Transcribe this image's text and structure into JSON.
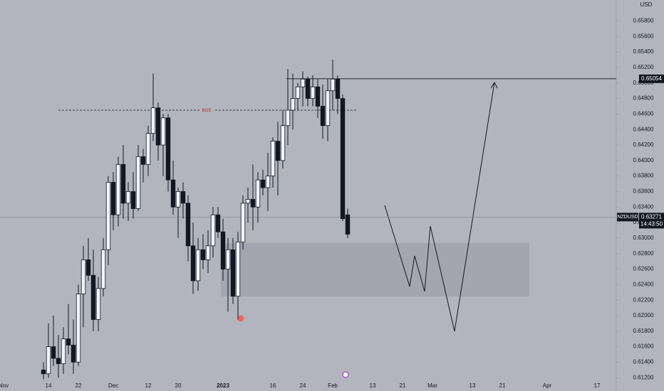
{
  "chart_data": {
    "type": "candlestick",
    "symbol": "NZDUSD",
    "currency": "USD",
    "annotation": "BOS",
    "countdown": "14:43:50",
    "last_price": 0.63271,
    "level_price": 0.65054,
    "up_color": "#f0f3fa",
    "down_color": "#131722",
    "ylim": [
      0.6112,
      0.6607
    ],
    "yticks": [
      {
        "value": 0.612,
        "label": "0.61200"
      },
      {
        "value": 0.614,
        "label": "0.61400"
      },
      {
        "value": 0.616,
        "label": "0.61600"
      },
      {
        "value": 0.618,
        "label": "0.61800"
      },
      {
        "value": 0.62,
        "label": "0.62000"
      },
      {
        "value": 0.622,
        "label": "0.62200"
      },
      {
        "value": 0.624,
        "label": "0.62400"
      },
      {
        "value": 0.626,
        "label": "0.62600"
      },
      {
        "value": 0.628,
        "label": "0.62800"
      },
      {
        "value": 0.63,
        "label": "0.63000"
      },
      {
        "value": 0.632,
        "label": "0.63200"
      },
      {
        "value": 0.634,
        "label": "0.63400"
      },
      {
        "value": 0.636,
        "label": "0.63600"
      },
      {
        "value": 0.638,
        "label": "0.63800"
      },
      {
        "value": 0.64,
        "label": "0.64000"
      },
      {
        "value": 0.642,
        "label": "0.64200"
      },
      {
        "value": 0.644,
        "label": "0.64400"
      },
      {
        "value": 0.646,
        "label": "0.64600"
      },
      {
        "value": 0.648,
        "label": "0.64800"
      },
      {
        "value": 0.65,
        "label": "0.65000"
      },
      {
        "value": 0.652,
        "label": "0.65200"
      },
      {
        "value": 0.654,
        "label": "0.65400"
      },
      {
        "value": 0.656,
        "label": "0.65600"
      },
      {
        "value": 0.658,
        "label": "0.65800"
      }
    ],
    "categories": [
      "Nov",
      null,
      null,
      null,
      null,
      null,
      null,
      null,
      null,
      "14",
      null,
      null,
      null,
      null,
      null,
      "22",
      null,
      null,
      null,
      null,
      null,
      null,
      "Dec",
      null,
      null,
      null,
      null,
      null,
      null,
      "12",
      null,
      null,
      null,
      null,
      null,
      "20",
      null,
      null,
      null,
      null,
      null,
      null,
      null,
      null,
      "2023",
      null,
      null,
      null,
      null,
      null,
      null,
      null,
      null,
      null,
      "16",
      null,
      null,
      null,
      null,
      null,
      "24",
      null,
      null,
      null,
      null,
      null,
      "Feb",
      null,
      null,
      null,
      null,
      null,
      null,
      null,
      "13",
      null,
      null,
      null,
      null,
      null,
      "21",
      null,
      null,
      null,
      null,
      null,
      "Mar",
      null,
      null,
      null,
      null,
      null,
      null,
      null,
      "13",
      null,
      null,
      null,
      null,
      null,
      "21",
      null,
      null,
      null,
      null,
      null,
      null,
      null,
      null,
      "Apr",
      null,
      null,
      null,
      null,
      null,
      null,
      null,
      null,
      null,
      "17",
      null,
      null,
      null
    ],
    "open": [
      null,
      null,
      null,
      null,
      null,
      null,
      null,
      null,
      0.613,
      0.6125,
      0.616,
      0.6145,
      0.6138,
      0.617,
      0.6162,
      0.614,
      0.6228,
      0.6272,
      0.6252,
      0.6195,
      0.6235,
      0.6285,
      0.6372,
      0.633,
      0.6395,
      0.6345,
      0.636,
      0.6338,
      0.6405,
      0.6395,
      0.6435,
      0.6468,
      0.642,
      0.6455,
      0.6375,
      0.634,
      0.636,
      0.6345,
      0.629,
      0.6245,
      0.6285,
      0.6272,
      0.629,
      0.633,
      0.6308,
      0.626,
      0.6285,
      0.6225,
      0.6295,
      0.6345,
      0.635,
      0.634,
      0.6375,
      0.6365,
      0.638,
      0.6425,
      0.64,
      0.6445,
      0.6465,
      0.648,
      0.6495,
      0.6505,
      0.648,
      0.6495,
      0.647,
      0.6445,
      0.649,
      0.6505,
      0.648,
      0.633,
      null,
      null,
      null,
      null,
      null,
      null,
      null,
      null,
      null,
      null,
      null,
      null,
      null,
      null,
      null,
      null,
      null,
      null,
      null,
      null,
      null,
      null,
      null,
      null,
      null,
      null,
      null,
      null,
      null,
      null,
      null,
      null,
      null,
      null,
      null,
      null,
      null,
      null,
      null,
      null,
      null,
      null,
      null,
      null,
      null,
      null,
      null,
      null,
      null,
      null,
      null,
      null,
      null
    ],
    "high": [
      null,
      null,
      null,
      null,
      null,
      null,
      null,
      null,
      0.614,
      0.619,
      0.62,
      0.6175,
      0.6185,
      0.6215,
      0.6195,
      0.624,
      0.629,
      0.63,
      0.6285,
      0.625,
      0.63,
      0.638,
      0.6385,
      0.6405,
      0.642,
      0.6372,
      0.6385,
      0.642,
      0.6415,
      0.6445,
      0.6512,
      0.6475,
      0.646,
      0.646,
      0.64,
      0.6365,
      0.6372,
      0.6355,
      0.632,
      0.63,
      0.6305,
      0.631,
      0.634,
      0.634,
      0.6325,
      0.63,
      0.63,
      0.6308,
      0.6355,
      0.6365,
      0.6395,
      0.6385,
      0.6388,
      0.641,
      0.643,
      0.645,
      0.6465,
      0.6518,
      0.6512,
      0.65,
      0.6515,
      0.6508,
      0.651,
      0.6505,
      0.6498,
      0.6505,
      0.653,
      0.651,
      0.6485,
      0.6338,
      null,
      null,
      null,
      null,
      null,
      null,
      null,
      null,
      null,
      null,
      null,
      null,
      null,
      null,
      null,
      null,
      null,
      null,
      null,
      null,
      null,
      null,
      null,
      null,
      null,
      null,
      null,
      null,
      null,
      null,
      null,
      null,
      null,
      null,
      null,
      null,
      null,
      null,
      null,
      null,
      null,
      null,
      null,
      null,
      null,
      null,
      null,
      null,
      null,
      null,
      null,
      null,
      null
    ],
    "low": [
      null,
      null,
      null,
      null,
      null,
      null,
      null,
      null,
      0.6118,
      0.612,
      0.6135,
      0.612,
      0.6125,
      0.615,
      0.6125,
      0.6135,
      0.6185,
      0.6245,
      0.618,
      0.618,
      0.6225,
      0.6265,
      0.631,
      0.6315,
      0.6325,
      0.6322,
      0.6325,
      0.6335,
      0.6372,
      0.638,
      0.6425,
      0.64,
      0.638,
      0.636,
      0.633,
      0.63,
      0.6325,
      0.627,
      0.6228,
      0.6232,
      0.626,
      0.6255,
      0.6275,
      0.63,
      0.6245,
      0.6205,
      0.6215,
      0.6195,
      0.6285,
      0.632,
      0.631,
      0.632,
      0.6355,
      0.6335,
      0.6365,
      0.6355,
      0.639,
      0.642,
      0.644,
      0.6465,
      0.647,
      0.647,
      0.647,
      0.6455,
      0.6428,
      0.6425,
      0.6465,
      0.646,
      0.6322,
      0.63,
      null,
      null,
      null,
      null,
      null,
      null,
      null,
      null,
      null,
      null,
      null,
      null,
      null,
      null,
      null,
      null,
      null,
      null,
      null,
      null,
      null,
      null,
      null,
      null,
      null,
      null,
      null,
      null,
      null,
      null,
      null,
      null,
      null,
      null,
      null,
      null,
      null,
      null,
      null,
      null,
      null,
      null,
      null,
      null,
      null,
      null,
      null,
      null,
      null,
      null,
      null,
      null,
      null
    ],
    "close": [
      null,
      null,
      null,
      null,
      null,
      null,
      null,
      null,
      0.6125,
      0.616,
      0.6145,
      0.6138,
      0.617,
      0.6162,
      0.614,
      0.6228,
      0.6272,
      0.6252,
      0.6195,
      0.6235,
      0.6285,
      0.6372,
      0.633,
      0.6395,
      0.6345,
      0.636,
      0.6338,
      0.6405,
      0.6395,
      0.6435,
      0.6468,
      0.642,
      0.6455,
      0.6375,
      0.634,
      0.636,
      0.6345,
      0.629,
      0.6245,
      0.6285,
      0.6272,
      0.629,
      0.633,
      0.6308,
      0.626,
      0.6285,
      0.6225,
      0.6295,
      0.6345,
      0.635,
      0.634,
      0.6375,
      0.6365,
      0.638,
      0.6425,
      0.64,
      0.6445,
      0.6465,
      0.648,
      0.6495,
      0.6505,
      0.648,
      0.6495,
      0.647,
      0.6445,
      0.649,
      0.6505,
      0.648,
      0.6325,
      0.6305,
      null,
      null,
      null,
      null,
      null,
      null,
      null,
      null,
      null,
      null,
      null,
      null,
      null,
      null,
      null,
      null,
      null,
      null,
      null,
      null,
      null,
      null,
      null,
      null,
      null,
      null,
      null,
      null,
      null,
      null,
      null,
      null,
      null,
      null,
      null,
      null,
      null,
      null,
      null,
      null,
      null,
      null,
      null,
      null,
      null,
      null,
      null,
      null,
      null,
      null,
      null,
      null,
      null
    ]
  }
}
